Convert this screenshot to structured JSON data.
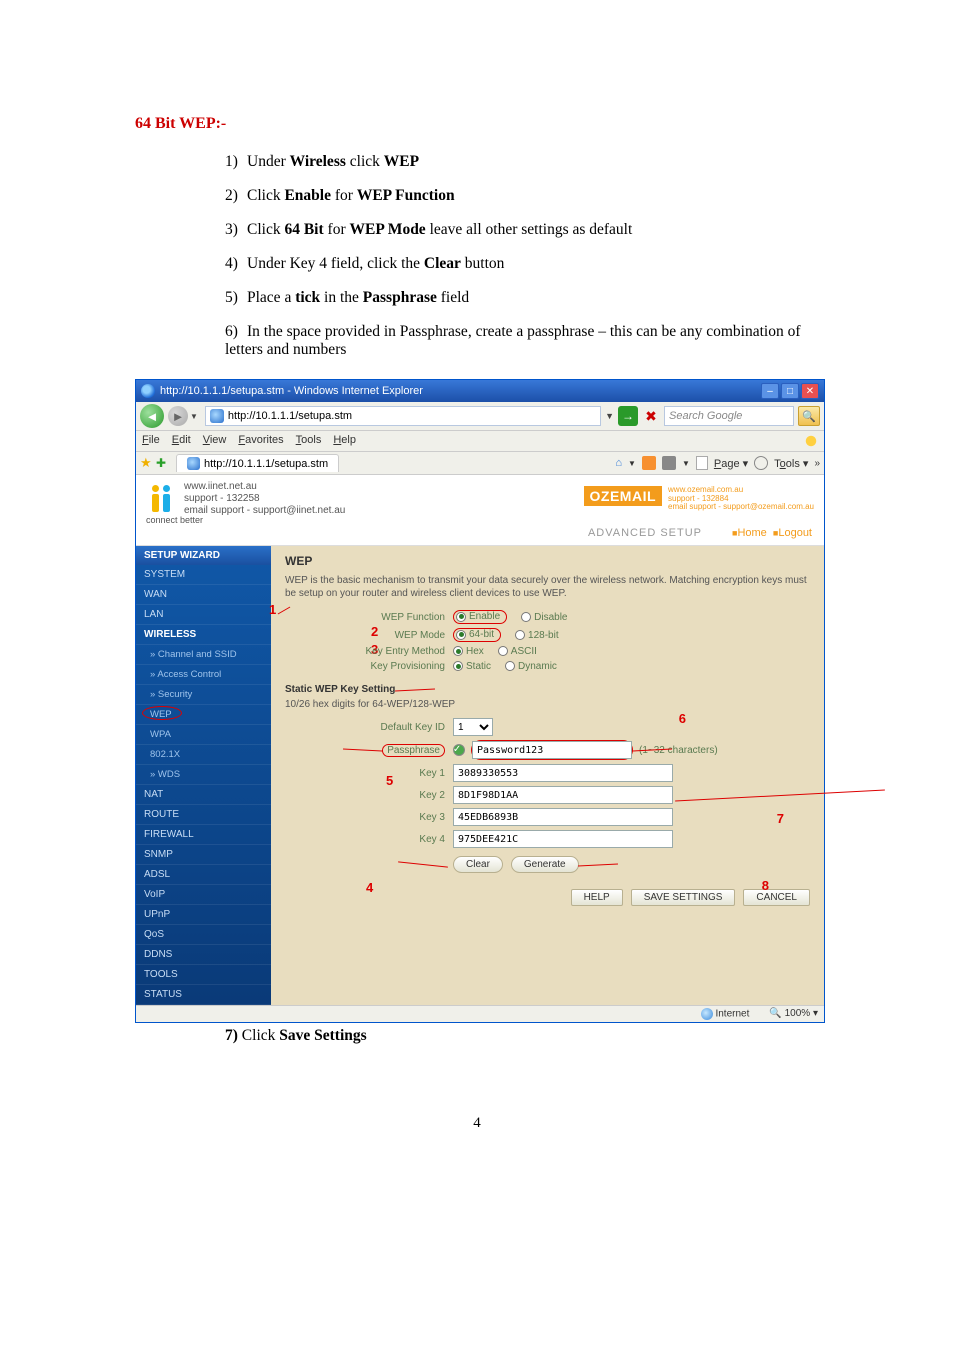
{
  "section_title": "64 Bit WEP:-",
  "instructions": [
    {
      "n": "1)",
      "pre": "Under ",
      "b1": "Wireless",
      "mid": " click ",
      "b2": "WEP",
      "post": ""
    },
    {
      "n": "2)",
      "pre": "Click ",
      "b1": "Enable",
      "mid": " for ",
      "b2": "WEP Function",
      "post": ""
    },
    {
      "n": "3)",
      "pre": "Click ",
      "b1": "64 Bit",
      "mid": " for ",
      "b2": "WEP Mode",
      "post": " leave all other settings as default"
    },
    {
      "n": "4)",
      "pre": "Under Key 4 field, click the ",
      "b1": "Clear",
      "mid": "",
      "b2": "",
      "post": " button"
    },
    {
      "n": "5)",
      "pre": "Place a ",
      "b1": "tick",
      "mid": " in the ",
      "b2": "Passphrase",
      "post": " field"
    },
    {
      "n": "6)",
      "pre": "In the space provided in Passphrase, create a passphrase – this can be any combination of letters and numbers",
      "b1": "",
      "mid": "",
      "b2": "",
      "post": ""
    }
  ],
  "ie": {
    "title": "http://10.1.1.1/setupa.stm - Windows Internet Explorer",
    "url": "http://10.1.1.1/setupa.stm",
    "search_placeholder": "Search Google",
    "menu": [
      "File",
      "Edit",
      "View",
      "Favorites",
      "Tools",
      "Help"
    ],
    "tab_label": "http://10.1.1.1/setupa.stm",
    "toolbar_page": "Page",
    "toolbar_tools": "Tools",
    "status_internet": "Internet",
    "status_zoom": "100%"
  },
  "brand": {
    "iinet_l1": "www.iinet.net.au",
    "iinet_l2": "support - 132258",
    "iinet_l3": "email support - support@iinet.net.au",
    "iinet_cb": "connect better",
    "oz_logo": "OZEMAIL",
    "oz_l1": "www.ozemail.com.au",
    "oz_l2": "support - 132884",
    "oz_l3": "email support - support@ozemail.com.au",
    "adv": "ADVANCED SETUP",
    "home": "Home",
    "logout": "Logout"
  },
  "sidebar": {
    "items": [
      {
        "t": "SETUP WIZARD",
        "cls": "sb-head",
        "int": true,
        "name": "setup-wizard-link"
      },
      {
        "t": "SYSTEM",
        "cls": "sb-item",
        "int": true,
        "name": "system-link"
      },
      {
        "t": "WAN",
        "cls": "sb-item",
        "int": true,
        "name": "wan-link"
      },
      {
        "t": "LAN",
        "cls": "sb-item",
        "int": true,
        "name": "lan-link"
      },
      {
        "t": "WIRELESS",
        "cls": "sb-item sb-wireless",
        "int": true,
        "name": "wireless-link"
      },
      {
        "t": "» Channel and SSID",
        "cls": "sb-item sb-sub",
        "int": true,
        "name": "channel-ssid-link"
      },
      {
        "t": "» Access Control",
        "cls": "sb-item sb-sub",
        "int": true,
        "name": "access-control-link"
      },
      {
        "t": "» Security",
        "cls": "sb-item sb-sub",
        "int": true,
        "name": "security-link"
      },
      {
        "t": "WEP",
        "cls": "sb-item sb-sub sb-wep",
        "int": true,
        "name": "wep-link"
      },
      {
        "t": "WPA",
        "cls": "sb-item sb-sub",
        "int": true,
        "name": "wpa-link"
      },
      {
        "t": "802.1X",
        "cls": "sb-item sb-sub",
        "int": true,
        "name": "8021x-link"
      },
      {
        "t": "» WDS",
        "cls": "sb-item sb-sub",
        "int": true,
        "name": "wds-link"
      },
      {
        "t": "NAT",
        "cls": "sb-item",
        "int": true,
        "name": "nat-link"
      },
      {
        "t": "ROUTE",
        "cls": "sb-item",
        "int": true,
        "name": "route-link"
      },
      {
        "t": "FIREWALL",
        "cls": "sb-item",
        "int": true,
        "name": "firewall-link"
      },
      {
        "t": "SNMP",
        "cls": "sb-item",
        "int": true,
        "name": "snmp-link"
      },
      {
        "t": "ADSL",
        "cls": "sb-item",
        "int": true,
        "name": "adsl-link"
      },
      {
        "t": "VoIP",
        "cls": "sb-item",
        "int": true,
        "name": "voip-link"
      },
      {
        "t": "UPnP",
        "cls": "sb-item",
        "int": true,
        "name": "upnp-link"
      },
      {
        "t": "QoS",
        "cls": "sb-item",
        "int": true,
        "name": "qos-link"
      },
      {
        "t": "DDNS",
        "cls": "sb-item",
        "int": true,
        "name": "ddns-link"
      },
      {
        "t": "TOOLS",
        "cls": "sb-item",
        "int": true,
        "name": "tools-link"
      },
      {
        "t": "STATUS",
        "cls": "sb-item",
        "int": true,
        "name": "status-link"
      }
    ]
  },
  "wep": {
    "heading": "WEP",
    "desc": "WEP is the basic mechanism to transmit your data securely over the wireless network. Matching encryption keys must be setup on your router and wireless client devices to use WEP.",
    "labels": {
      "function": "WEP Function",
      "mode": "WEP Mode",
      "entry": "Key Entry Method",
      "prov": "Key Provisioning",
      "enable": "Enable",
      "disable": "Disable",
      "bit64": "64-bit",
      "bit128": "128-bit",
      "hex": "Hex",
      "ascii": "ASCII",
      "static": "Static",
      "dynamic": "Dynamic"
    },
    "static_heading": "Static WEP Key Setting",
    "static_desc": "10/26 hex digits for 64-WEP/128-WEP",
    "default_key_label": "Default Key ID",
    "default_key_value": "1",
    "passphrase_label": "Passphrase",
    "passphrase_value": "Password123",
    "passphrase_hint": "(1~32 characters)",
    "keys": [
      {
        "label": "Key 1",
        "value": "3089330553"
      },
      {
        "label": "Key 2",
        "value": "8D1F98D1AA"
      },
      {
        "label": "Key 3",
        "value": "45EDB6893B"
      },
      {
        "label": "Key 4",
        "value": "975DEE421C"
      }
    ],
    "btn_clear": "Clear",
    "btn_generate": "Generate",
    "btn_help": "HELP",
    "btn_save": "SAVE SETTINGS",
    "btn_cancel": "CANCEL"
  },
  "callouts": {
    "c1": "1",
    "c2": "2",
    "c3": "3",
    "c4": "4",
    "c5": "5",
    "c6": "6",
    "c7": "7",
    "c8": "8"
  },
  "post_step": {
    "n": "7)",
    "pre": "Click ",
    "b": "Save Settings"
  },
  "page_number": "4"
}
